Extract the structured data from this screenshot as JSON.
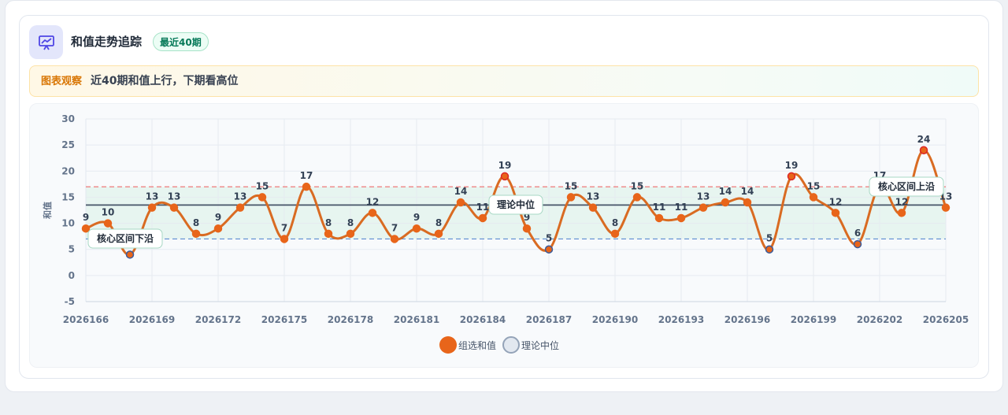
{
  "header": {
    "title": "和值走势追踪",
    "badge": "最近40期"
  },
  "insight": {
    "label": "图表观察",
    "text": "近40期和值上行，下期看高位"
  },
  "colors": {
    "series": "#d96b22",
    "point": "#e8651a",
    "low_point_border": "#3b5b9a",
    "median": "#475569",
    "upper": "#ef6b6b",
    "lower": "#5b8bd0",
    "band": "#d8f1e6"
  },
  "chart_data": {
    "type": "line",
    "x": [
      "2026166",
      "2026167",
      "2026168",
      "2026169",
      "2026170",
      "2026171",
      "2026172",
      "2026173",
      "2026174",
      "2026175",
      "2026176",
      "2026177",
      "2026178",
      "2026179",
      "2026180",
      "2026181",
      "2026182",
      "2026183",
      "2026184",
      "2026185",
      "2026186",
      "2026187",
      "2026188",
      "2026189",
      "2026190",
      "2026191",
      "2026192",
      "2026193",
      "2026194",
      "2026195",
      "2026196",
      "2026197",
      "2026198",
      "2026199",
      "2026200",
      "2026201",
      "2026202",
      "2026203",
      "2026204",
      "2026205"
    ],
    "x_tick_labels": [
      "2026166",
      "2026169",
      "2026172",
      "2026175",
      "2026178",
      "2026181",
      "2026184",
      "2026187",
      "2026190",
      "2026193",
      "2026196",
      "2026199",
      "2026202",
      "2026205"
    ],
    "series": [
      {
        "name": "组选和值",
        "values": [
          9,
          10,
          4,
          13,
          13,
          8,
          9,
          13,
          15,
          7,
          17,
          8,
          8,
          12,
          7,
          9,
          8,
          14,
          11,
          19,
          9,
          5,
          15,
          13,
          8,
          15,
          11,
          11,
          13,
          14,
          14,
          5,
          19,
          15,
          12,
          6,
          17,
          12,
          24,
          13
        ]
      }
    ],
    "ylabel": "和值",
    "ylim": [
      -5,
      30
    ],
    "yticks": [
      -5,
      0,
      5,
      10,
      15,
      20,
      25,
      30
    ],
    "median": {
      "name": "理论中位",
      "value": 13.5
    },
    "upper": {
      "label": "核心区间上沿",
      "value": 17
    },
    "lower": {
      "label": "核心区间下沿",
      "value": 7
    },
    "grid": true,
    "legend": "bottom-center",
    "legend_items": [
      "组选和值",
      "理论中位"
    ]
  }
}
